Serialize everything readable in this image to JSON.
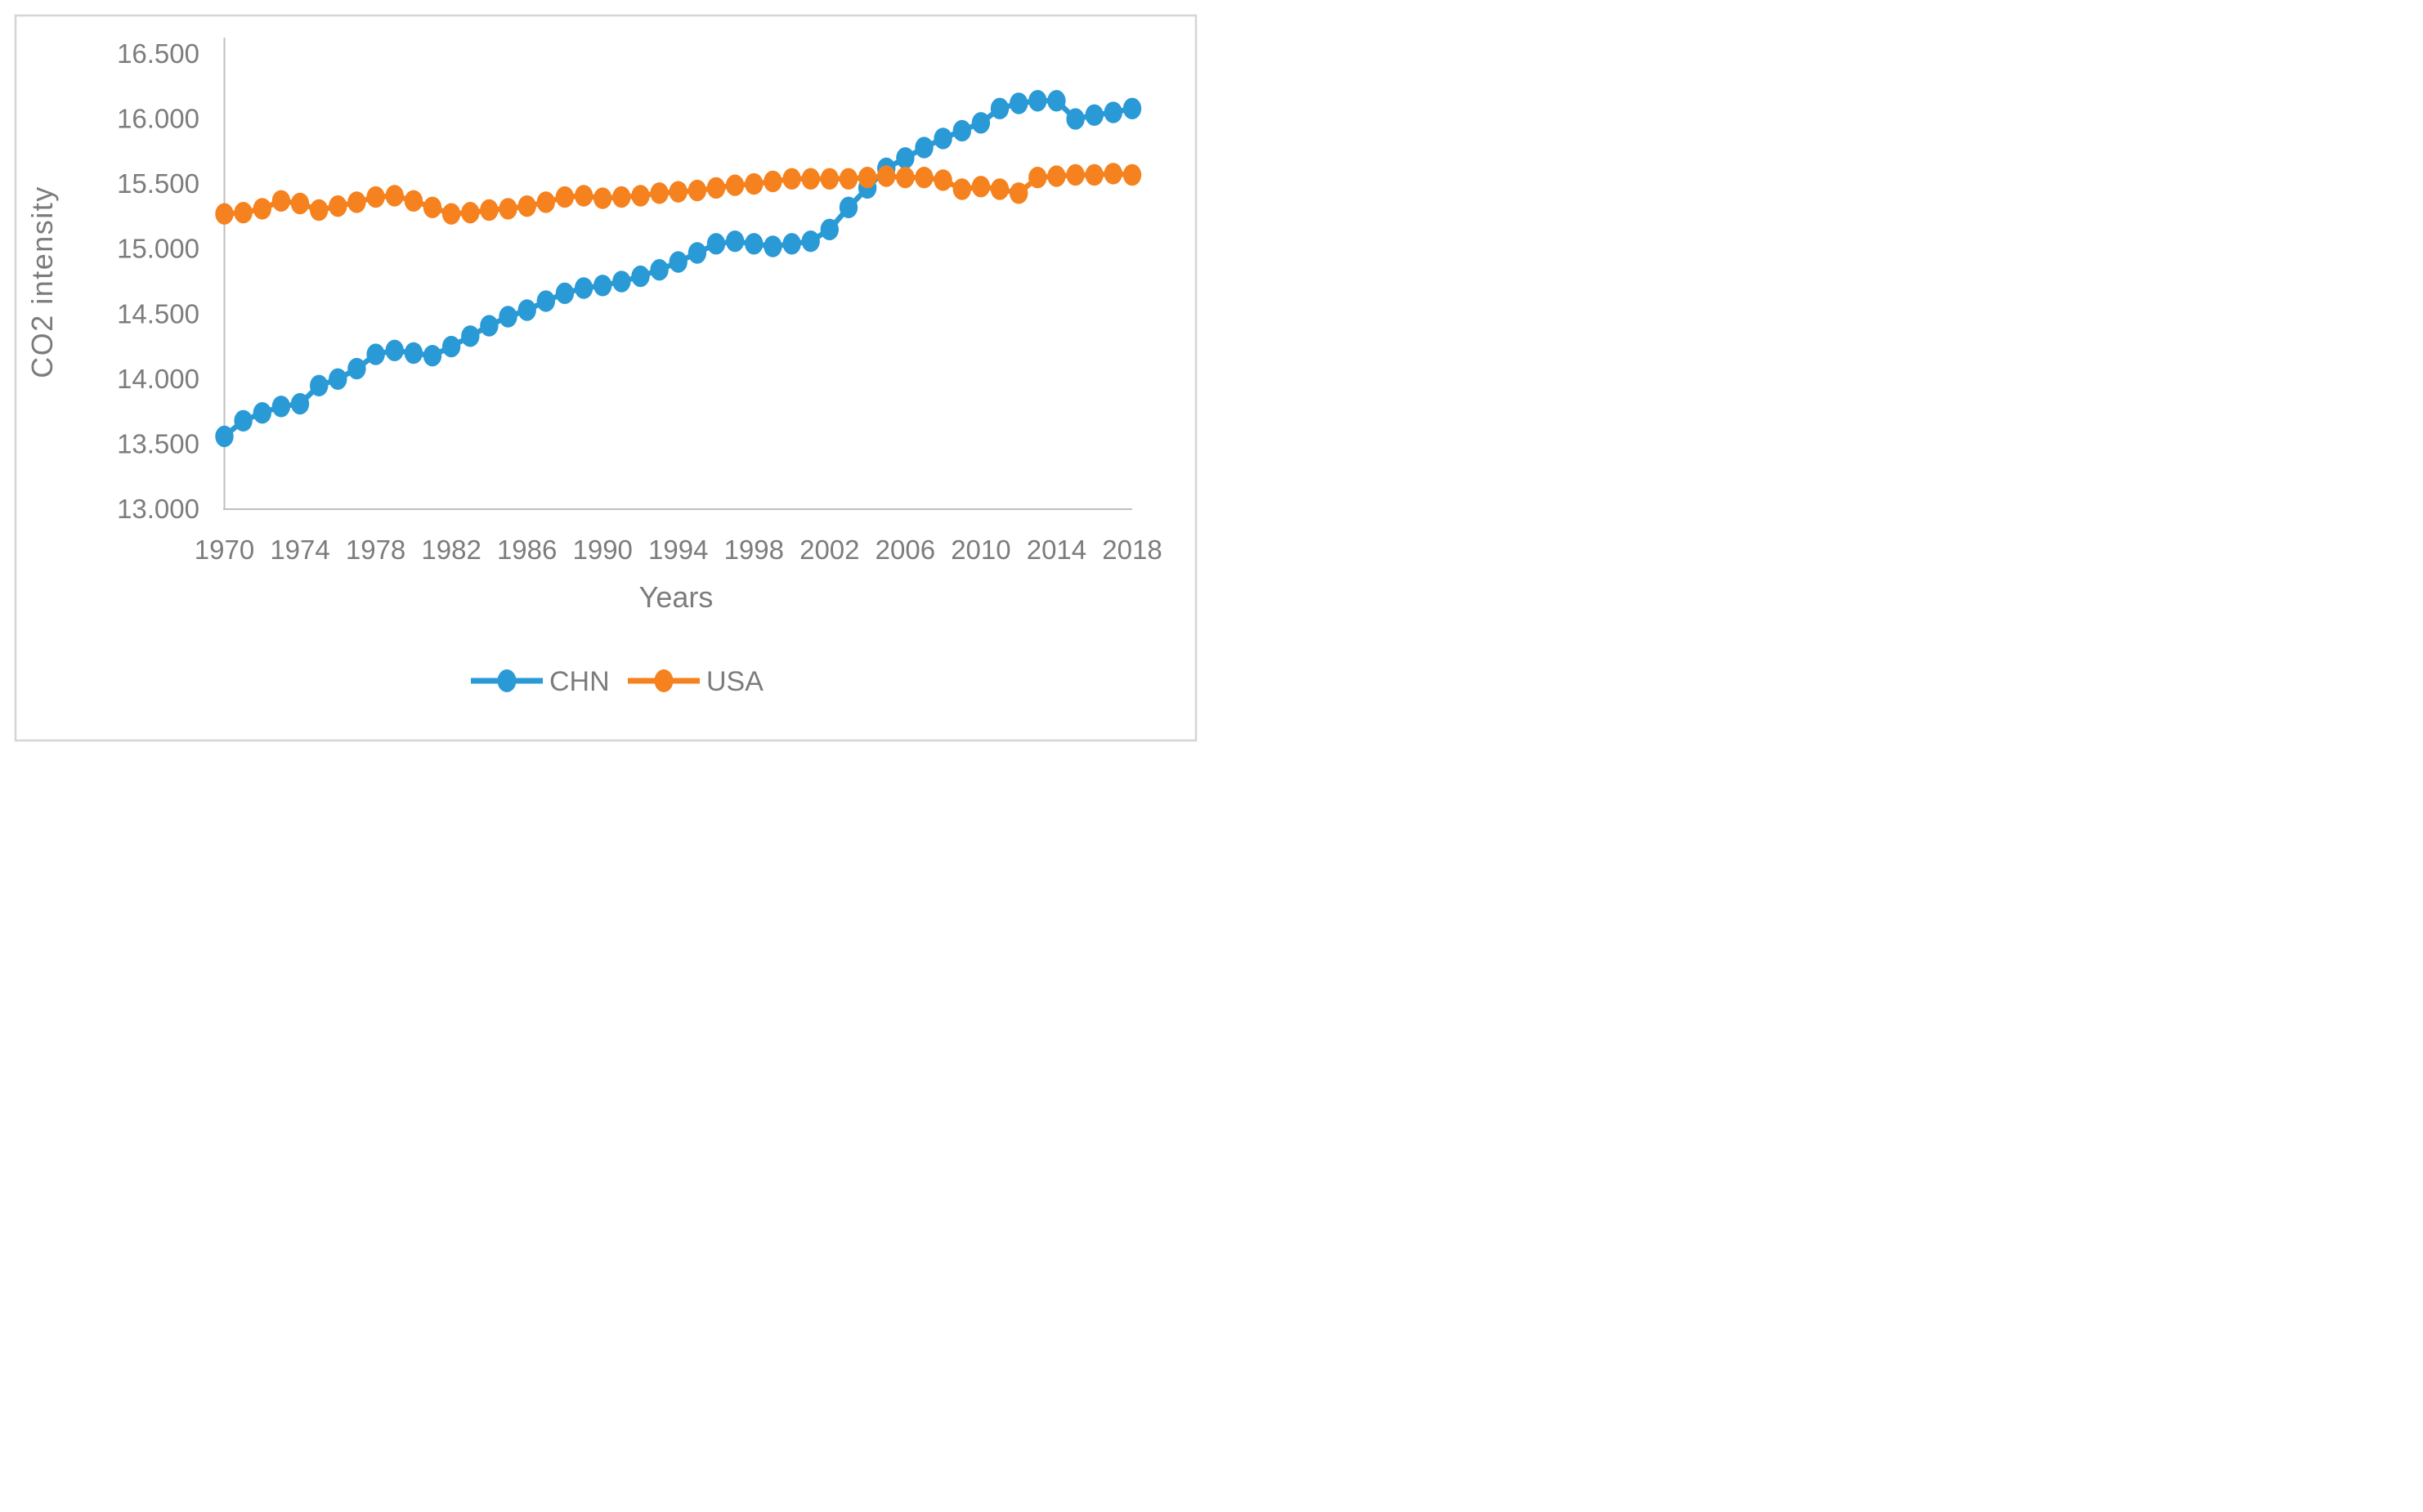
{
  "figure": {
    "background": "#FFFFFF",
    "frame_border_color": "#D5D5D5"
  },
  "chart_data": {
    "type": "line",
    "title": "",
    "xlabel": "Years",
    "ylabel": "CO2 intensity",
    "ylim": [
      13.0,
      16.5
    ],
    "xlim": [
      1970,
      2018
    ],
    "grid": false,
    "legend_position": "bottom",
    "axis_color": "#BFBFBF",
    "text_color": "#7C7C7C",
    "y_ticks": [
      16.5,
      16.0,
      15.5,
      15.0,
      14.5,
      14.0,
      13.5,
      13.0
    ],
    "y_tick_labels": [
      "16.500",
      "16.000",
      "15.500",
      "15.000",
      "14.500",
      "14.000",
      "13.500",
      "13.000"
    ],
    "x_ticks": [
      1970,
      1974,
      1978,
      1982,
      1986,
      1990,
      1994,
      1998,
      2002,
      2006,
      2010,
      2014,
      2018
    ],
    "x_tick_labels": [
      "1970",
      "1974",
      "1978",
      "1982",
      "1986",
      "1990",
      "1994",
      "1998",
      "2002",
      "2006",
      "2010",
      "2014",
      "2018"
    ],
    "x": [
      1970,
      1971,
      1972,
      1973,
      1974,
      1975,
      1976,
      1977,
      1978,
      1979,
      1980,
      1981,
      1982,
      1983,
      1984,
      1985,
      1986,
      1987,
      1988,
      1989,
      1990,
      1991,
      1992,
      1993,
      1994,
      1995,
      1996,
      1997,
      1998,
      1999,
      2000,
      2001,
      2002,
      2003,
      2004,
      2005,
      2006,
      2007,
      2008,
      2009,
      2010,
      2011,
      2012,
      2013,
      2014,
      2015,
      2016,
      2017,
      2018
    ],
    "series": [
      {
        "name": "CHN",
        "color": "#2A9AD6",
        "values": [
          13.56,
          13.68,
          13.74,
          13.79,
          13.81,
          13.95,
          14.0,
          14.08,
          14.19,
          14.22,
          14.2,
          14.18,
          14.25,
          14.33,
          14.41,
          14.48,
          14.53,
          14.6,
          14.66,
          14.7,
          14.72,
          14.75,
          14.79,
          14.84,
          14.9,
          14.97,
          15.04,
          15.06,
          15.04,
          15.02,
          15.04,
          15.06,
          15.15,
          15.32,
          15.47,
          15.62,
          15.7,
          15.78,
          15.85,
          15.91,
          15.97,
          16.08,
          16.12,
          16.14,
          16.14,
          16.0,
          16.03,
          16.05,
          16.08
        ]
      },
      {
        "name": "USA",
        "color": "#F5821F",
        "values": [
          15.27,
          15.28,
          15.31,
          15.37,
          15.35,
          15.3,
          15.33,
          15.36,
          15.4,
          15.41,
          15.37,
          15.32,
          15.27,
          15.28,
          15.3,
          15.31,
          15.33,
          15.36,
          15.4,
          15.41,
          15.39,
          15.4,
          15.41,
          15.43,
          15.44,
          15.45,
          15.47,
          15.49,
          15.5,
          15.52,
          15.54,
          15.54,
          15.54,
          15.54,
          15.55,
          15.56,
          15.55,
          15.55,
          15.53,
          15.46,
          15.48,
          15.46,
          15.43,
          15.55,
          15.56,
          15.57,
          15.57,
          15.58,
          15.57
        ]
      }
    ]
  }
}
